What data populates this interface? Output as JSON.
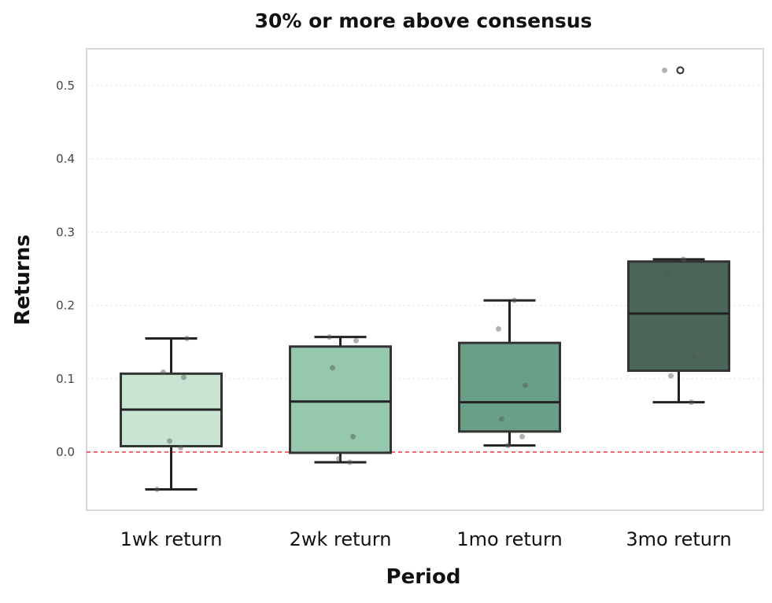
{
  "chart_data": {
    "type": "box",
    "title": "30% or more above consensus",
    "xlabel": "Period",
    "ylabel": "Returns",
    "categories": [
      "1wk return",
      "2wk return",
      "1mo return",
      "3mo return"
    ],
    "ylim": [
      -0.08,
      0.55
    ],
    "yticks": [
      0.0,
      0.1,
      0.2,
      0.3,
      0.4,
      0.5
    ],
    "ytick_labels": [
      "0.0",
      "0.1",
      "0.2",
      "0.3",
      "0.4",
      "0.5"
    ],
    "grid": true,
    "reference_line": {
      "y": 0.0,
      "color": "#e8393f",
      "style": "dashed"
    },
    "boxes": [
      {
        "category": "1wk return",
        "whisker_low": -0.051,
        "q1": 0.008,
        "median": 0.058,
        "q3": 0.107,
        "whisker_high": 0.155,
        "outliers": []
      },
      {
        "category": "2wk return",
        "whisker_low": -0.014,
        "q1": -0.001,
        "median": 0.069,
        "q3": 0.144,
        "whisker_high": 0.157,
        "outliers": []
      },
      {
        "category": "1mo return",
        "whisker_low": 0.009,
        "q1": 0.028,
        "median": 0.068,
        "q3": 0.149,
        "whisker_high": 0.207,
        "outliers": []
      },
      {
        "category": "3mo return",
        "whisker_low": 0.068,
        "q1": 0.111,
        "median": 0.189,
        "q3": 0.26,
        "whisker_high": 0.263,
        "outliers": [
          0.521
        ]
      }
    ],
    "points": [
      [
        -0.051,
        0.006,
        0.015,
        0.102,
        0.109,
        0.155
      ],
      [
        -0.014,
        -0.009,
        0.021,
        0.115,
        0.152,
        0.157
      ],
      [
        0.009,
        0.021,
        0.045,
        0.091,
        0.168,
        0.207
      ],
      [
        0.068,
        0.104,
        0.129,
        0.246,
        0.263,
        0.521
      ]
    ],
    "colors": [
      "#c9e4d3",
      "#96c8ae",
      "#6a9f87",
      "#4b6559"
    ]
  }
}
